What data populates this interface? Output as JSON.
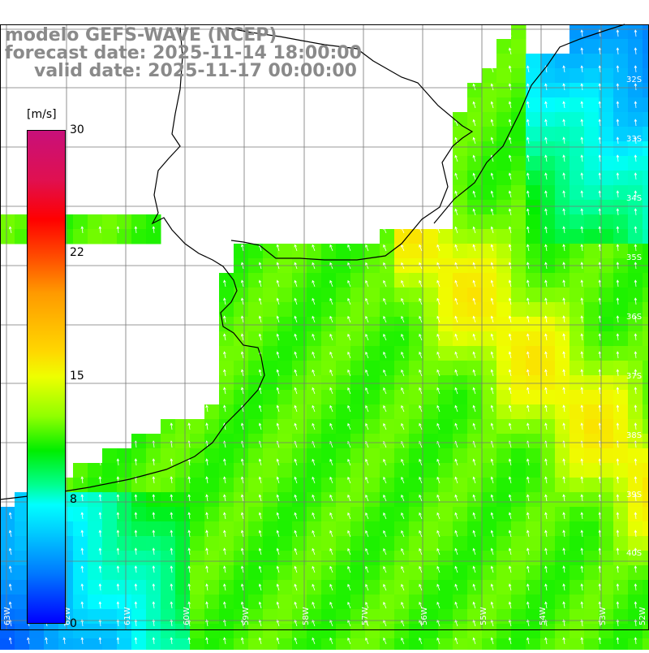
{
  "title": {
    "line1": "modelo GEFS-WAVE (NCEP)",
    "line2": "forecast date: 2025-11-14 18:00:00",
    "line3": "valid date: 2025-11-17 00:00:00"
  },
  "colorbar": {
    "units": "[m/s]",
    "ticks": [
      "30",
      "22",
      "15",
      "8",
      "0"
    ],
    "min": 0,
    "max": 30
  },
  "lat_labels": [
    "32S",
    "33S",
    "34S",
    "35S",
    "36S",
    "37S",
    "38S",
    "39S",
    "40S"
  ],
  "lon_labels": [
    "63W",
    "62W",
    "61W",
    "60W",
    "59W",
    "58W",
    "57W",
    "56W",
    "55W",
    "54W",
    "53W",
    "52W"
  ],
  "colors": {
    "land": "#ffffff",
    "coast": "#000000",
    "grid": "#777777",
    "title": "#8a8a8a",
    "arrow": "#ffffff"
  }
}
